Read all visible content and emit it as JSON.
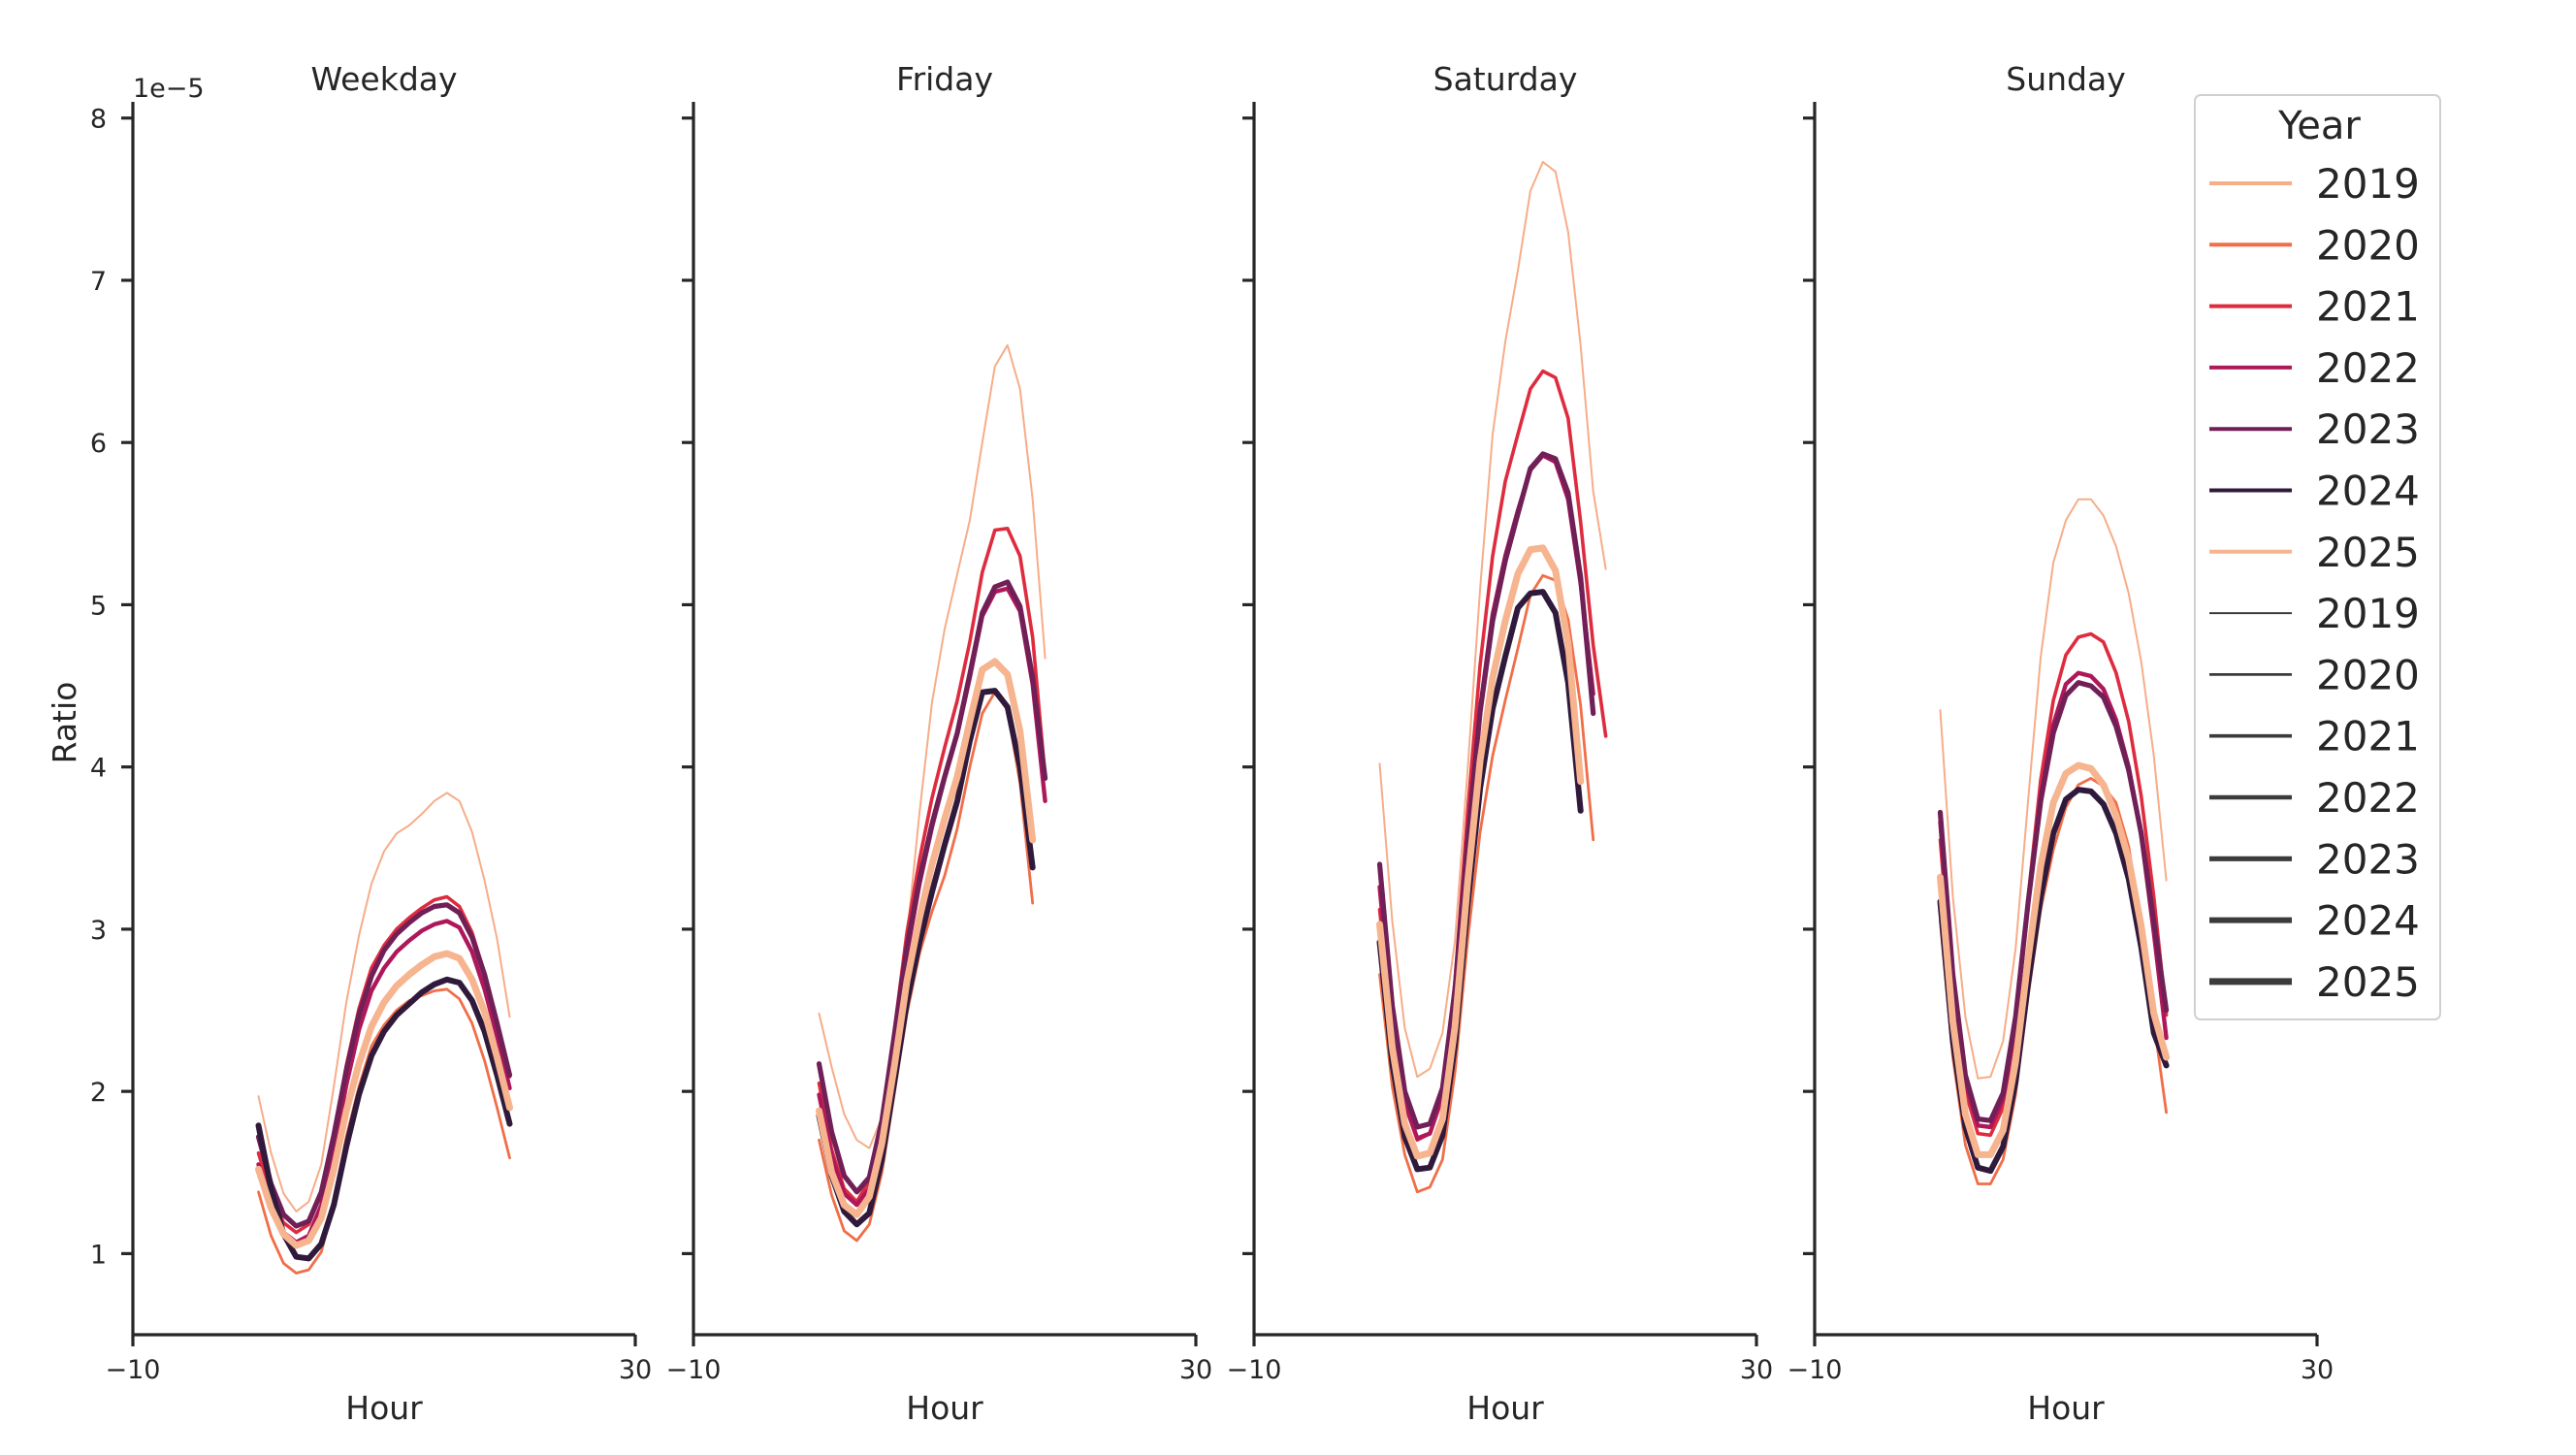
{
  "chart_data": {
    "type": "line",
    "ylabel": "Ratio",
    "xlabel": "Hour",
    "y_offset_label": "1e−5",
    "xlim": [
      -10,
      30
    ],
    "ylim": [
      0.5,
      8.1
    ],
    "xticks": [
      -10,
      30
    ],
    "xtick_labels": [
      "−10",
      "30"
    ],
    "yticks": [
      1,
      2,
      3,
      4,
      5,
      6,
      7,
      8
    ],
    "ytick_labels": [
      "1",
      "2",
      "3",
      "4",
      "5",
      "6",
      "7",
      "8"
    ],
    "hours": [
      0,
      1,
      2,
      3,
      4,
      5,
      6,
      7,
      8,
      9,
      10,
      11,
      12,
      13,
      14,
      15,
      16,
      17,
      18,
      19,
      20,
      21,
      22,
      23
    ],
    "colors": {
      "2019": "#F6AD88",
      "2020": "#F06E48",
      "2021": "#DE2C3F",
      "2022": "#AE1759",
      "2023": "#701F57",
      "2024": "#301A3C",
      "2025": "#F6B48F"
    },
    "widths": {
      "2019": 2.0,
      "2020": 2.8,
      "2021": 3.6,
      "2022": 4.4,
      "2023": 5.2,
      "2024": 6.0,
      "2025": 7.0
    },
    "panels": [
      {
        "title": "Weekday",
        "series": [
          {
            "name": "2019",
            "values": [
              1.97,
              1.62,
              1.37,
              1.26,
              1.32,
              1.55,
              2.03,
              2.55,
              2.96,
              3.28,
              3.48,
              3.59,
              3.64,
              3.71,
              3.79,
              3.84,
              3.79,
              3.6,
              3.3,
              2.94,
              2.46
            ]
          },
          {
            "name": "2020",
            "values": [
              1.38,
              1.11,
              0.94,
              0.88,
              0.9,
              1.01,
              1.31,
              1.72,
              2.03,
              2.28,
              2.41,
              2.5,
              2.56,
              2.59,
              2.62,
              2.63,
              2.57,
              2.42,
              2.19,
              1.9,
              1.59
            ]
          },
          {
            "name": "2021",
            "values": [
              1.62,
              1.36,
              1.19,
              1.13,
              1.18,
              1.37,
              1.73,
              2.16,
              2.51,
              2.76,
              2.9,
              3.0,
              3.07,
              3.13,
              3.18,
              3.2,
              3.14,
              2.98,
              2.73,
              2.43,
              2.09
            ]
          },
          {
            "name": "2022",
            "values": [
              1.55,
              1.31,
              1.13,
              1.07,
              1.11,
              1.3,
              1.64,
              2.04,
              2.38,
              2.62,
              2.76,
              2.86,
              2.93,
              2.99,
              3.03,
              3.05,
              3.01,
              2.86,
              2.63,
              2.34,
              2.02
            ]
          },
          {
            "name": "2023",
            "values": [
              1.72,
              1.43,
              1.24,
              1.17,
              1.2,
              1.38,
              1.73,
              2.13,
              2.47,
              2.71,
              2.87,
              2.97,
              3.04,
              3.1,
              3.14,
              3.15,
              3.1,
              2.95,
              2.72,
              2.42,
              2.1
            ]
          },
          {
            "name": "2024",
            "values": [
              1.79,
              1.4,
              1.12,
              0.98,
              0.97,
              1.06,
              1.3,
              1.66,
              1.98,
              2.22,
              2.37,
              2.47,
              2.54,
              2.61,
              2.66,
              2.69,
              2.67,
              2.56,
              2.37,
              2.1,
              1.8
            ]
          },
          {
            "name": "2025",
            "values": [
              1.52,
              1.28,
              1.12,
              1.05,
              1.08,
              1.22,
              1.52,
              1.88,
              2.17,
              2.4,
              2.55,
              2.65,
              2.72,
              2.78,
              2.83,
              2.85,
              2.82,
              2.69,
              2.49,
              2.21,
              1.9
            ]
          }
        ]
      },
      {
        "title": "Friday",
        "series": [
          {
            "name": "2019",
            "values": [
              2.48,
              2.15,
              1.86,
              1.7,
              1.65,
              1.84,
              2.28,
              2.95,
              3.72,
              4.4,
              4.85,
              5.19,
              5.52,
              6.0,
              6.47,
              6.6,
              6.33,
              5.65,
              4.67
            ]
          },
          {
            "name": "2020",
            "values": [
              1.7,
              1.36,
              1.14,
              1.08,
              1.18,
              1.5,
              1.99,
              2.48,
              2.85,
              3.11,
              3.33,
              3.62,
              4.0,
              4.33,
              4.46,
              4.35,
              3.9,
              3.16
            ]
          },
          {
            "name": "2021",
            "values": [
              2.05,
              1.64,
              1.4,
              1.32,
              1.45,
              1.82,
              2.38,
              2.98,
              3.43,
              3.81,
              4.12,
              4.41,
              4.77,
              5.2,
              5.46,
              5.47,
              5.3,
              4.8,
              3.94
            ]
          },
          {
            "name": "2022",
            "values": [
              1.98,
              1.6,
              1.37,
              1.3,
              1.4,
              1.76,
              2.3,
              2.85,
              3.28,
              3.63,
              3.93,
              4.2,
              4.55,
              4.93,
              5.08,
              5.1,
              4.96,
              4.51,
              3.79
            ]
          },
          {
            "name": "2023",
            "values": [
              2.17,
              1.75,
              1.48,
              1.38,
              1.47,
              1.82,
              2.35,
              2.89,
              3.31,
              3.65,
              3.94,
              4.21,
              4.57,
              4.95,
              5.11,
              5.14,
              4.99,
              4.55,
              3.93
            ]
          },
          {
            "name": "2024",
            "values": [
              1.85,
              1.48,
              1.26,
              1.18,
              1.25,
              1.58,
              2.06,
              2.55,
              2.92,
              3.23,
              3.52,
              3.79,
              4.16,
              4.46,
              4.47,
              4.37,
              4.0,
              3.38
            ]
          },
          {
            "name": "2025",
            "values": [
              1.88,
              1.5,
              1.3,
              1.24,
              1.35,
              1.68,
              2.16,
              2.68,
              3.07,
              3.4,
              3.68,
              3.94,
              4.28,
              4.6,
              4.65,
              4.57,
              4.22,
              3.55
            ]
          }
        ]
      },
      {
        "title": "Saturday",
        "series": [
          {
            "name": "2019",
            "values": [
              4.02,
              3.05,
              2.39,
              2.09,
              2.14,
              2.36,
              2.93,
              3.98,
              5.1,
              6.05,
              6.62,
              7.06,
              7.55,
              7.73,
              7.67,
              7.3,
              6.6,
              5.7,
              5.22
            ]
          },
          {
            "name": "2020",
            "values": [
              2.72,
              2.03,
              1.61,
              1.38,
              1.41,
              1.58,
              2.12,
              2.93,
              3.6,
              4.07,
              4.41,
              4.73,
              5.06,
              5.18,
              5.15,
              4.91,
              4.38,
              3.55
            ]
          },
          {
            "name": "2021",
            "values": [
              3.12,
              2.37,
              1.92,
              1.7,
              1.74,
              1.98,
              2.68,
              3.72,
              4.63,
              5.3,
              5.76,
              6.05,
              6.33,
              6.44,
              6.4,
              6.15,
              5.51,
              4.75,
              4.19
            ]
          },
          {
            "name": "2022",
            "values": [
              3.26,
              2.44,
              1.93,
              1.71,
              1.74,
              1.97,
              2.6,
              3.55,
              4.36,
              4.94,
              5.3,
              5.58,
              5.83,
              5.92,
              5.88,
              5.65,
              5.13,
              4.45
            ]
          },
          {
            "name": "2023",
            "values": [
              3.4,
              2.53,
              2.0,
              1.78,
              1.8,
              2.02,
              2.63,
              3.54,
              4.34,
              4.9,
              5.27,
              5.56,
              5.84,
              5.93,
              5.9,
              5.69,
              5.17,
              4.33
            ]
          },
          {
            "name": "2024",
            "values": [
              2.92,
              2.17,
              1.72,
              1.52,
              1.53,
              1.73,
              2.29,
              3.15,
              3.87,
              4.36,
              4.68,
              4.98,
              5.07,
              5.08,
              4.95,
              4.52,
              3.73
            ]
          },
          {
            "name": "2025",
            "values": [
              3.03,
              2.27,
              1.8,
              1.6,
              1.62,
              1.83,
              2.4,
              3.29,
              4.04,
              4.55,
              4.9,
              5.19,
              5.34,
              5.35,
              5.21,
              4.76,
              3.91
            ]
          }
        ]
      },
      {
        "title": "Sunday",
        "series": [
          {
            "name": "2019",
            "values": [
              4.35,
              3.2,
              2.46,
              2.08,
              2.09,
              2.31,
              2.88,
              3.8,
              4.68,
              5.26,
              5.52,
              5.65,
              5.65,
              5.55,
              5.36,
              5.07,
              4.65,
              4.07,
              3.3
            ]
          },
          {
            "name": "2020",
            "values": [
              3.05,
              2.21,
              1.67,
              1.43,
              1.43,
              1.58,
              1.98,
              2.59,
              3.12,
              3.49,
              3.75,
              3.89,
              3.93,
              3.88,
              3.78,
              3.51,
              3.02,
              2.43,
              1.87
            ]
          },
          {
            "name": "2021",
            "values": [
              3.55,
              2.6,
              2.0,
              1.74,
              1.73,
              1.9,
              2.4,
              3.2,
              3.92,
              4.41,
              4.69,
              4.8,
              4.82,
              4.77,
              4.58,
              4.28,
              3.82,
              3.2,
              2.47
            ]
          },
          {
            "name": "2022",
            "values": [
              3.66,
              2.68,
              2.06,
              1.79,
              1.78,
              1.95,
              2.43,
              3.17,
              3.82,
              4.26,
              4.51,
              4.58,
              4.56,
              4.48,
              4.29,
              4.0,
              3.58,
              2.98,
              2.33
            ]
          },
          {
            "name": "2023",
            "values": [
              3.72,
              2.72,
              2.1,
              1.83,
              1.82,
              1.99,
              2.46,
              3.17,
              3.79,
              4.21,
              4.44,
              4.52,
              4.5,
              4.43,
              4.25,
              3.98,
              3.59,
              3.05,
              2.5
            ]
          },
          {
            "name": "2024",
            "values": [
              3.17,
              2.31,
              1.78,
              1.53,
              1.51,
              1.66,
              2.06,
              2.67,
              3.2,
              3.59,
              3.8,
              3.86,
              3.85,
              3.77,
              3.59,
              3.31,
              2.89,
              2.36,
              2.16
            ]
          },
          {
            "name": "2025",
            "values": [
              3.32,
              2.43,
              1.86,
              1.61,
              1.61,
              1.76,
              2.18,
              2.82,
              3.39,
              3.78,
              3.96,
              4.01,
              3.99,
              3.89,
              3.7,
              3.43,
              3.02,
              2.48,
              2.21
            ]
          }
        ]
      }
    ],
    "legend": {
      "title": "Year",
      "placement": "upper-right",
      "hue_entries": [
        "2019",
        "2020",
        "2021",
        "2022",
        "2023",
        "2024",
        "2025"
      ],
      "size_entries": [
        "2019",
        "2020",
        "2021",
        "2022",
        "2023",
        "2024",
        "2025"
      ]
    }
  }
}
